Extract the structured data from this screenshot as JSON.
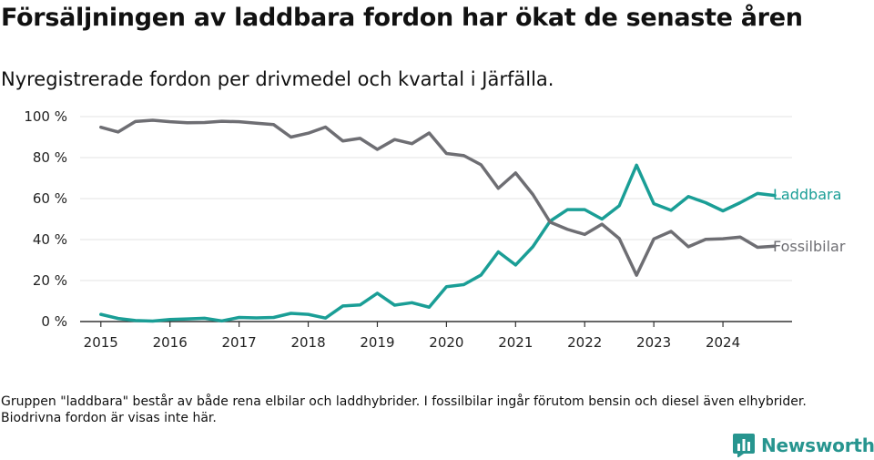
{
  "title": "Försäljningen av laddbara fordon har ökat de senaste åren",
  "subtitle": "Nyregistrerade fordon per drivmedel och kvartal i Järfälla.",
  "note": "Gruppen \"laddbara\" består av både rena elbilar och laddhybrider. I fossilbilar ingår förutom bensin och diesel även elhybrider. Biodrivna fordon är visas inte här.",
  "brand": "Newsworthy",
  "colors": {
    "laddbara": "#1a9e96",
    "fossil": "#6e6e73"
  },
  "chart_data": {
    "type": "line",
    "title": "Försäljningen av laddbara fordon har ökat de senaste åren",
    "xlabel": "",
    "ylabel": "",
    "ylim": [
      0,
      100
    ],
    "xlim": [
      2014.7,
      2025.0
    ],
    "yticks": [
      0,
      20,
      40,
      60,
      80,
      100
    ],
    "ytick_labels": [
      "0 %",
      "20 %",
      "40 %",
      "60 %",
      "80 %",
      "100 %"
    ],
    "xticks": [
      2015,
      2016,
      2017,
      2018,
      2019,
      2020,
      2021,
      2022,
      2023,
      2024
    ],
    "xtick_labels": [
      "2015",
      "2016",
      "2017",
      "2018",
      "2019",
      "2020",
      "2021",
      "2022",
      "2023",
      "2024"
    ],
    "grid": true,
    "x": [
      2015.0,
      2015.25,
      2015.5,
      2015.75,
      2016.0,
      2016.25,
      2016.5,
      2016.75,
      2017.0,
      2017.25,
      2017.5,
      2017.75,
      2018.0,
      2018.25,
      2018.5,
      2018.75,
      2019.0,
      2019.25,
      2019.5,
      2019.75,
      2020.0,
      2020.25,
      2020.5,
      2020.75,
      2021.0,
      2021.25,
      2021.5,
      2021.75,
      2022.0,
      2022.25,
      2022.5,
      2022.75,
      2023.0,
      2023.25,
      2023.5,
      2023.75,
      2024.0,
      2024.25,
      2024.5,
      2024.75
    ],
    "series": [
      {
        "name": "Laddbara",
        "key": "laddbara",
        "values": [
          3.5,
          1.5,
          0.5,
          0.2,
          1.0,
          1.3,
          1.6,
          0.3,
          2.0,
          1.8,
          2.0,
          4.0,
          3.5,
          1.7,
          7.6,
          8.1,
          13.8,
          8.0,
          9.2,
          7.0,
          17.0,
          18.0,
          22.7,
          34.0,
          27.6,
          36.5,
          49.0,
          54.6,
          54.6,
          50.0,
          56.5,
          76.3,
          57.5,
          54.3,
          61.0,
          58.0,
          54.0,
          58.0,
          62.5,
          61.5
        ]
      },
      {
        "name": "Fossilbilar",
        "key": "fossil",
        "values": [
          94.8,
          92.5,
          97.6,
          98.2,
          97.5,
          97.0,
          97.1,
          97.7,
          97.5,
          96.8,
          96.1,
          90.0,
          91.9,
          94.9,
          88.1,
          89.4,
          84.0,
          88.8,
          86.8,
          92.0,
          82.0,
          81.0,
          76.5,
          65.0,
          72.5,
          62.0,
          48.5,
          45.0,
          42.5,
          47.5,
          40.5,
          22.6,
          40.3,
          44.0,
          36.5,
          40.1,
          40.4,
          41.2,
          36.2,
          36.8
        ]
      }
    ]
  }
}
